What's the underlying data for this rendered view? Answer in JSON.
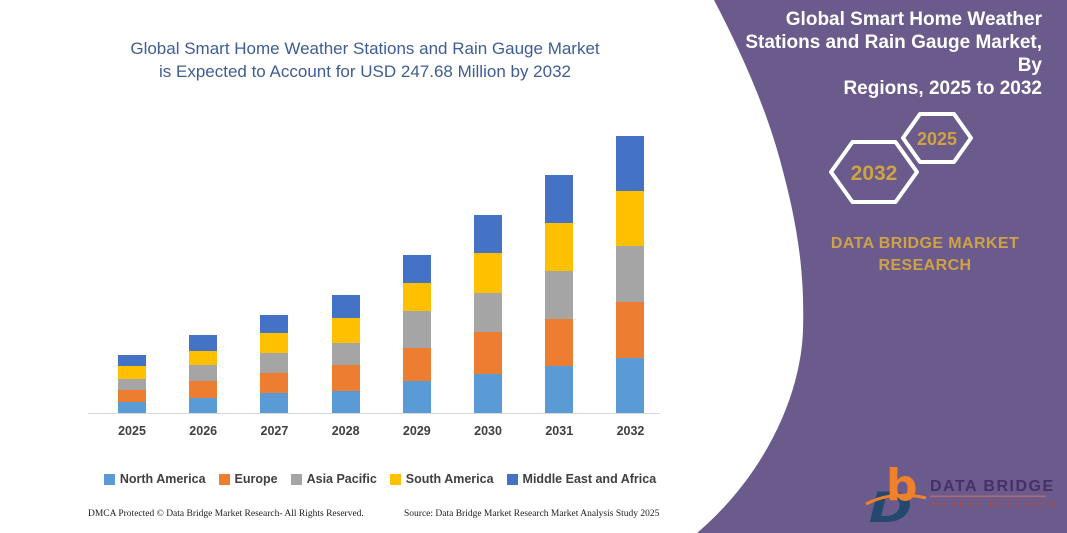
{
  "colors": {
    "panel_purple": "#6a5b8c",
    "accent_gold": "#cfa243",
    "title_blue": "#3e5d94",
    "axis_gray": "#d9d9d9",
    "label_gray": "#404040"
  },
  "main_title": {
    "line1": "Global Smart Home Weather Stations and Rain Gauge Market",
    "line2": "is Expected to Account for USD 247.68 Million by 2032"
  },
  "chart_data": {
    "type": "bar",
    "stacked": true,
    "title": "Global Smart Home Weather Stations and Rain Gauge Market is Expected to Account for USD 247.68 Million by 2032",
    "unit": "USD Million",
    "xlabel": "",
    "ylabel": "",
    "grid": false,
    "legend_position": "bottom",
    "categories": [
      "2025",
      "2026",
      "2027",
      "2028",
      "2029",
      "2030",
      "2031",
      "2032"
    ],
    "series": [
      {
        "name": "North America",
        "color": "#5B9BD5",
        "values": [
          10.3,
          13.9,
          18.7,
          19.9,
          29.1,
          35.7,
          42.5,
          50.0
        ]
      },
      {
        "name": "Europe",
        "color": "#ED7D31",
        "values": [
          10.4,
          14.9,
          17.8,
          23.8,
          29.8,
          37.5,
          42.3,
          49.6
        ]
      },
      {
        "name": "Asia Pacific",
        "color": "#A5A5A5",
        "values": [
          10.4,
          14.3,
          17.6,
          19.6,
          32.7,
          34.2,
          42.8,
          50.0
        ]
      },
      {
        "name": "South America",
        "color": "#FFC000",
        "values": [
          11.0,
          13.1,
          17.8,
          22.0,
          24.7,
          36.0,
          42.2,
          49.1
        ]
      },
      {
        "name": "Middle East and Africa",
        "color": "#4472C4",
        "values": [
          10.4,
          13.7,
          16.3,
          20.8,
          25.2,
          33.9,
          42.8,
          49.0
        ]
      }
    ],
    "annotations": [
      "2032 total = USD 247.68 Million"
    ],
    "totals_estimated": [
      52.5,
      69.9,
      88.2,
      106.1,
      141.5,
      177.3,
      212.6,
      247.68
    ]
  },
  "right_panel": {
    "title_lines": [
      "Global Smart Home Weather",
      "Stations and Rain Gauge Market, By",
      "Regions, 2025 to 2032"
    ],
    "hexagons": [
      {
        "label": "2032"
      },
      {
        "label": "2025"
      }
    ],
    "brand_line1": "DATA BRIDGE MARKET",
    "brand_line2": "RESEARCH"
  },
  "logo": {
    "monogram_b": "b",
    "monogram_d": "D",
    "wordmark": "DATA BRIDGE",
    "tagline": "MARKET RESEARCH"
  },
  "footer": {
    "dmca": "DMCA Protected © Data Bridge Market Research-  All Rights Reserved.",
    "source": "Source: Data Bridge Market Research  Market Analysis Study 2025"
  }
}
